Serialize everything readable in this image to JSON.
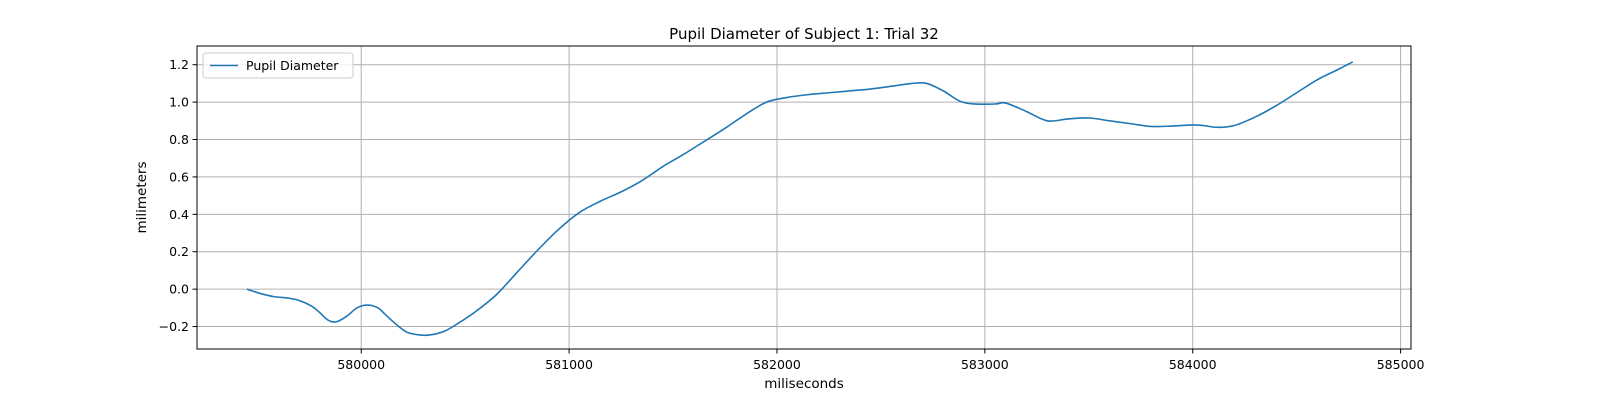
{
  "chart_data": {
    "type": "line",
    "title": "Pupil Diameter of Subject 1: Trial 32",
    "xlabel": "miliseconds",
    "ylabel": "milimeters",
    "xlim": [
      579210,
      585050
    ],
    "ylim": [
      -0.32,
      1.3
    ],
    "xticks": [
      580000,
      581000,
      582000,
      583000,
      584000,
      585000
    ],
    "xtick_labels": [
      "580000",
      "581000",
      "582000",
      "583000",
      "584000",
      "585000"
    ],
    "yticks": [
      -0.2,
      0.0,
      0.2,
      0.4,
      0.6,
      0.8,
      1.0,
      1.2
    ],
    "ytick_labels": [
      "−0.2",
      "0.0",
      "0.2",
      "0.4",
      "0.6",
      "0.8",
      "1.0",
      "1.2"
    ],
    "grid": true,
    "legend": {
      "position": "top-left",
      "entries": [
        "Pupil Diameter"
      ]
    },
    "color": "#1f77b4",
    "series": [
      {
        "name": "Pupil Diameter",
        "points": [
          [
            579450,
            0.0
          ],
          [
            579520,
            -0.025
          ],
          [
            579580,
            -0.04
          ],
          [
            579650,
            -0.048
          ],
          [
            579700,
            -0.06
          ],
          [
            579760,
            -0.09
          ],
          [
            579800,
            -0.125
          ],
          [
            579840,
            -0.165
          ],
          [
            579880,
            -0.175
          ],
          [
            579930,
            -0.145
          ],
          [
            579980,
            -0.1
          ],
          [
            580030,
            -0.085
          ],
          [
            580080,
            -0.1
          ],
          [
            580120,
            -0.14
          ],
          [
            580170,
            -0.19
          ],
          [
            580220,
            -0.23
          ],
          [
            580280,
            -0.245
          ],
          [
            580330,
            -0.245
          ],
          [
            580400,
            -0.225
          ],
          [
            580470,
            -0.18
          ],
          [
            580550,
            -0.12
          ],
          [
            580650,
            -0.03
          ],
          [
            580750,
            0.09
          ],
          [
            580850,
            0.21
          ],
          [
            580950,
            0.32
          ],
          [
            581050,
            0.41
          ],
          [
            581150,
            0.47
          ],
          [
            581250,
            0.52
          ],
          [
            581350,
            0.58
          ],
          [
            581450,
            0.655
          ],
          [
            581550,
            0.72
          ],
          [
            581650,
            0.79
          ],
          [
            581750,
            0.86
          ],
          [
            581850,
            0.935
          ],
          [
            581950,
            1.0
          ],
          [
            582050,
            1.025
          ],
          [
            582150,
            1.04
          ],
          [
            582250,
            1.05
          ],
          [
            582350,
            1.06
          ],
          [
            582450,
            1.07
          ],
          [
            582550,
            1.085
          ],
          [
            582650,
            1.1
          ],
          [
            582720,
            1.1
          ],
          [
            582800,
            1.06
          ],
          [
            582880,
            1.005
          ],
          [
            582950,
            0.99
          ],
          [
            583050,
            0.99
          ],
          [
            583100,
            0.995
          ],
          [
            583200,
            0.95
          ],
          [
            583300,
            0.9
          ],
          [
            583400,
            0.91
          ],
          [
            583500,
            0.915
          ],
          [
            583600,
            0.9
          ],
          [
            583700,
            0.885
          ],
          [
            583800,
            0.87
          ],
          [
            583900,
            0.872
          ],
          [
            584000,
            0.878
          ],
          [
            584050,
            0.875
          ],
          [
            584120,
            0.865
          ],
          [
            584200,
            0.875
          ],
          [
            584300,
            0.92
          ],
          [
            584400,
            0.98
          ],
          [
            584500,
            1.05
          ],
          [
            584600,
            1.12
          ],
          [
            584700,
            1.175
          ],
          [
            584770,
            1.215
          ]
        ]
      }
    ]
  }
}
